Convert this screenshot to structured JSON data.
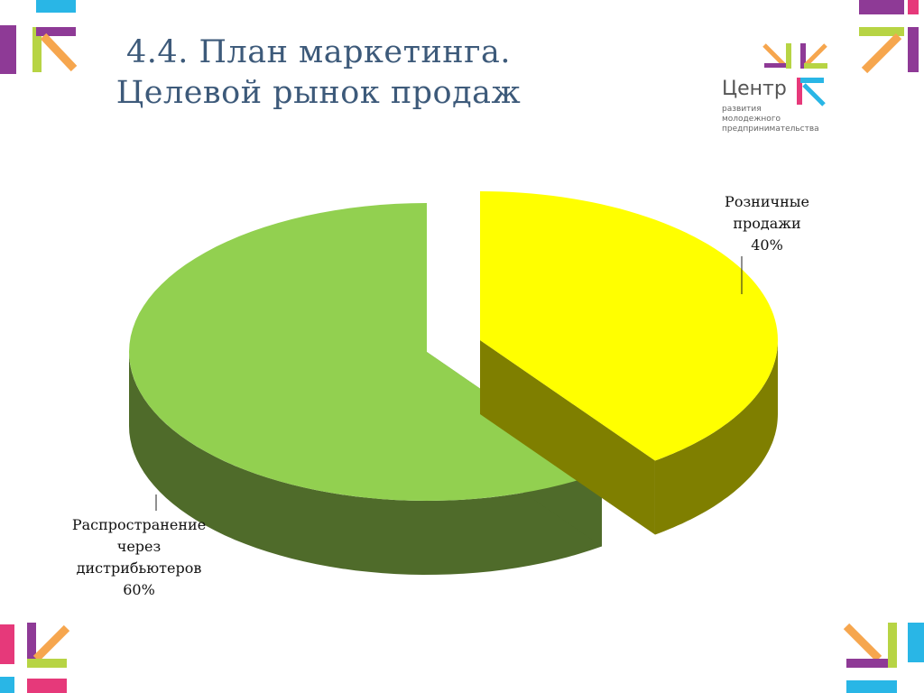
{
  "slide": {
    "title_line1": "4.4. План маркетинга.",
    "title_line2": "Целевой рынок продаж"
  },
  "logo": {
    "name": "Центр",
    "sub_line1": "развития",
    "sub_line2": "молодежного",
    "sub_line3": "предпринимательства"
  },
  "colors": {
    "purple": "#8e3a96",
    "green": "#b7d444",
    "orange": "#f6a64e",
    "cyan": "#29b6e6",
    "pink": "#e6397a",
    "slice_green_top": "#92d050",
    "slice_green_side": "#4f6b2a",
    "slice_yellow_top": "#ffff00",
    "slice_yellow_side": "#7f7f00"
  },
  "chart_data": {
    "type": "pie",
    "style": "3d-exploded",
    "categories": [
      "Розничные продажи",
      "Распространение через дистрибьютеров"
    ],
    "values": [
      40,
      60
    ],
    "labels": [
      {
        "lines": [
          "Розничные",
          "продажи",
          "40%"
        ]
      },
      {
        "lines": [
          "Распространение",
          "через",
          "дистрибьютеров",
          "60%"
        ]
      }
    ]
  }
}
